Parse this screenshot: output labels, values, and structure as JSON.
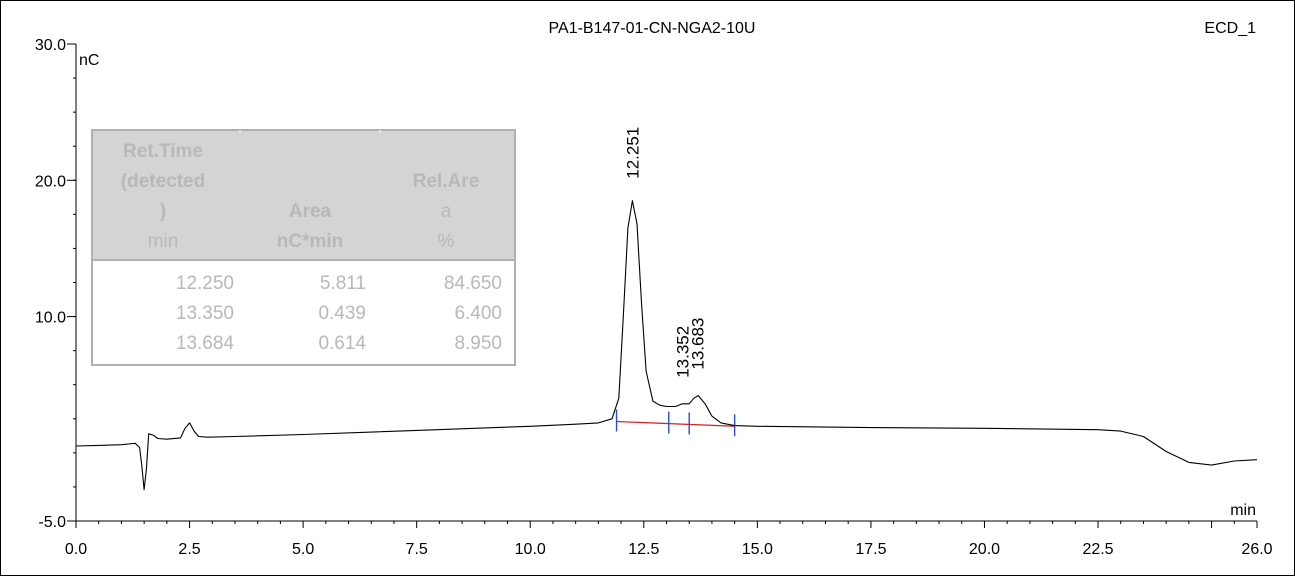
{
  "chart_data": {
    "type": "line",
    "title": "PA1-B147-01-CN-NGA2-10U",
    "channel": "ECD_1",
    "xlabel": "min",
    "ylabel": "nC",
    "xlim": [
      0.0,
      26.0
    ],
    "ylim": [
      -5.0,
      30.0
    ],
    "x_ticks": [
      "0.0",
      "2.5",
      "5.0",
      "7.5",
      "10.0",
      "12.5",
      "15.0",
      "17.5",
      "20.0",
      "22.5",
      "26.0"
    ],
    "x_tick_values": [
      0.0,
      2.5,
      5.0,
      7.5,
      10.0,
      12.5,
      15.0,
      17.5,
      20.0,
      22.5,
      26.0
    ],
    "y_ticks": [
      "-5.0",
      "10.0",
      "20.0",
      "30.0"
    ],
    "y_tick_values": [
      -5.0,
      10.0,
      20.0,
      30.0
    ],
    "series": [
      {
        "x": [
          0.0,
          0.5,
          1.0,
          1.3,
          1.4,
          1.45,
          1.5,
          1.55,
          1.6,
          1.7,
          1.8,
          2.0,
          2.3,
          2.4,
          2.5,
          2.6,
          2.7,
          2.9,
          3.5,
          5.0,
          7.5,
          10.0,
          11.0,
          11.5,
          11.8,
          11.95,
          12.05,
          12.15,
          12.25,
          12.35,
          12.45,
          12.55,
          12.7,
          12.85,
          13.0,
          13.2,
          13.35,
          13.5,
          13.6,
          13.7,
          13.85,
          14.0,
          14.2,
          14.5,
          15.0,
          17.5,
          20.0,
          22.5,
          23.0,
          23.5,
          24.0,
          24.5,
          25.0,
          25.5,
          26.0
        ],
        "y": [
          0.5,
          0.55,
          0.6,
          0.7,
          0.4,
          -1.0,
          -2.7,
          -1.2,
          1.4,
          1.3,
          1.05,
          1.0,
          1.1,
          1.8,
          2.2,
          1.6,
          1.2,
          1.15,
          1.2,
          1.35,
          1.65,
          1.95,
          2.1,
          2.2,
          2.5,
          4.0,
          10.0,
          16.5,
          18.5,
          16.8,
          11.0,
          6.0,
          3.8,
          3.5,
          3.4,
          3.4,
          3.6,
          3.6,
          4.0,
          4.2,
          3.6,
          2.7,
          2.2,
          2.0,
          1.95,
          1.85,
          1.8,
          1.7,
          1.6,
          1.2,
          0.1,
          -0.7,
          -0.9,
          -0.6,
          -0.5
        ]
      }
    ],
    "peaks": [
      {
        "label": "12.251",
        "x": 12.251,
        "y": 18.5
      },
      {
        "label": "13.352",
        "x": 13.352,
        "y": 3.6
      },
      {
        "label": "13.683",
        "x": 13.683,
        "y": 4.2
      }
    ],
    "baseline": {
      "x": [
        11.9,
        14.5
      ],
      "y": [
        2.3,
        1.95
      ],
      "color": "#d42020"
    },
    "integration_marks": [
      11.9,
      13.05,
      13.5,
      14.5
    ],
    "table": {
      "headers": [
        [
          "Ret.Time",
          "(detected",
          ")",
          "min"
        ],
        [
          "",
          "",
          "Area",
          "nC*min"
        ],
        [
          "",
          "Rel.Are",
          "a",
          "%"
        ]
      ],
      "rows": [
        [
          "12.250",
          "5.811",
          "84.650"
        ],
        [
          "13.350",
          "0.439",
          "6.400"
        ],
        [
          "13.684",
          "0.614",
          "8.950"
        ]
      ]
    },
    "colors": {
      "trace": "#000000",
      "baseline": "#d42020",
      "marks": "#2a4ccf",
      "table_header_bg": "#d4d4d4",
      "table_text": "#b8b8b8"
    }
  }
}
